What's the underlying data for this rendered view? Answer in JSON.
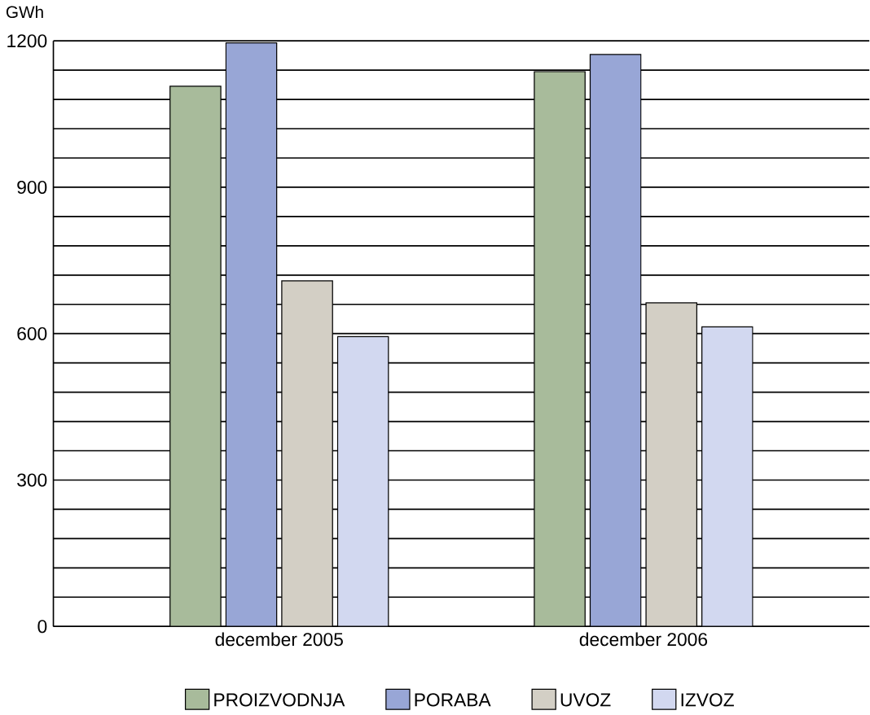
{
  "chart_data": {
    "type": "bar",
    "ylabel": "GWh",
    "categories": [
      "december 2005",
      "december 2006"
    ],
    "series": [
      {
        "name": "PROIZVODNJA",
        "color": "#a8bb9b",
        "values": [
          1107,
          1137
        ]
      },
      {
        "name": "PORABA",
        "color": "#98a6d6",
        "values": [
          1196,
          1172
        ]
      },
      {
        "name": "UVOZ",
        "color": "#d3cfc5",
        "values": [
          708,
          663
        ]
      },
      {
        "name": "IZVOZ",
        "color": "#d2d8f0",
        "values": [
          594,
          614
        ]
      }
    ],
    "ylim": [
      0,
      1200
    ],
    "yticks": [
      0,
      {
        "value": 60,
        "label": null
      },
      {
        "value": 120,
        "label": null
      },
      {
        "value": 180,
        "label": null
      },
      {
        "value": 240,
        "label": null
      },
      300,
      {
        "value": 360,
        "label": null
      },
      {
        "value": 420,
        "label": null
      },
      {
        "value": 480,
        "label": null
      },
      {
        "value": 540,
        "label": null
      },
      600,
      {
        "value": 660,
        "label": null
      },
      {
        "value": 720,
        "label": null
      },
      {
        "value": 780,
        "label": null
      },
      {
        "value": 840,
        "label": null
      },
      900,
      {
        "value": 960,
        "label": null
      },
      {
        "value": 1020,
        "label": null
      },
      {
        "value": 1080,
        "label": null
      },
      {
        "value": 1140,
        "label": null
      },
      1200
    ],
    "grid": "y",
    "legend": "bottom"
  }
}
